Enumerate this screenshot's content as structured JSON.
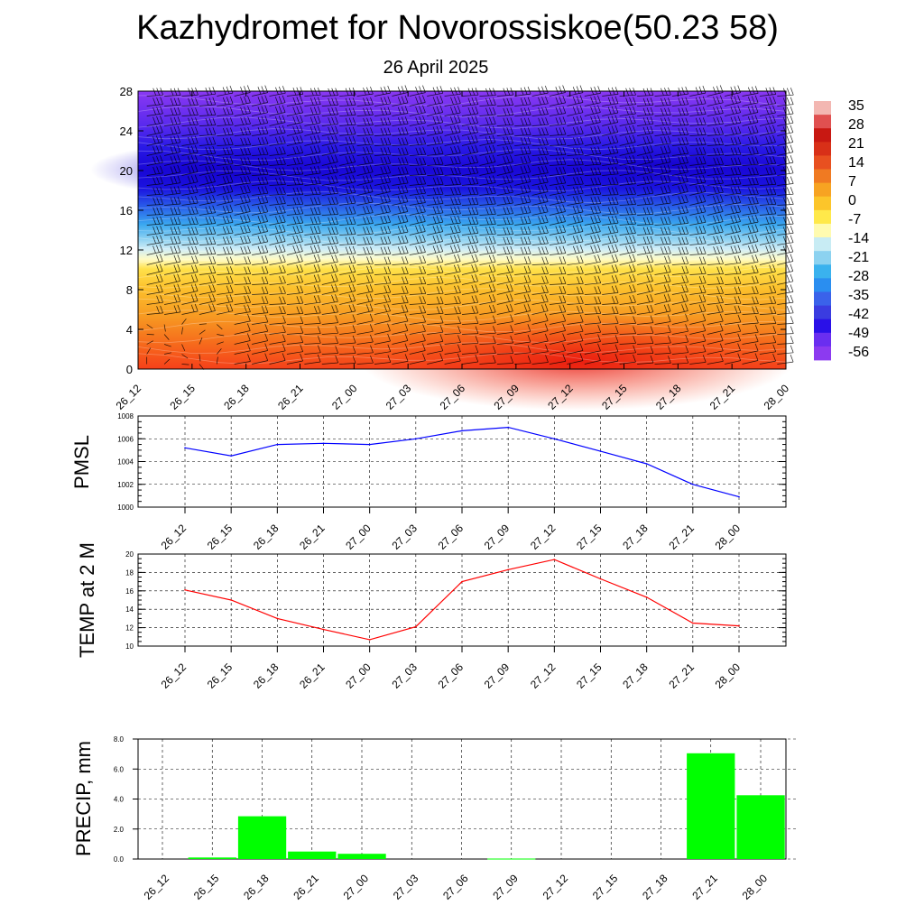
{
  "title": "Kazhydromet for Novorossiskoe(50.23 58)",
  "date": "26 April 2025",
  "chart_data": [
    {
      "type": "heatmap",
      "description_kind": "time-height temperature cross-section with wind barbs",
      "x": [
        "26_12",
        "26_15",
        "26_18",
        "26_21",
        "27_00",
        "27_03",
        "27_06",
        "27_09",
        "27_12",
        "27_15",
        "27_18",
        "27_21",
        "28_00"
      ],
      "y_ticks": [
        0,
        4,
        8,
        12,
        16,
        20,
        24,
        28
      ],
      "ylim": [
        0,
        28
      ],
      "colorbar_labels": [
        "35",
        "28",
        "21",
        "14",
        "7",
        "0",
        "-7",
        "-14",
        "-21",
        "-28",
        "-35",
        "-42",
        "-49",
        "-56"
      ],
      "colorbar_colors": [
        "#f3b7b2",
        "#e05050",
        "#c81812",
        "#d83018",
        "#e85020",
        "#f07a22",
        "#f7a322",
        "#fcc52a",
        "#ffe94a",
        "#fffbb0",
        "#c8ecf4",
        "#8cd2f0",
        "#3ab2ee",
        "#2a8ef0",
        "#3a62ea",
        "#3a3ce0",
        "#2a10e8",
        "#6a2ef0",
        "#8c3af0"
      ],
      "grid": false
    },
    {
      "type": "line",
      "ylabel": "PMSL",
      "categories": [
        "26_12",
        "26_15",
        "26_18",
        "26_21",
        "27_00",
        "27_03",
        "27_06",
        "27_09",
        "27_12",
        "27_15",
        "27_18",
        "27_21",
        "28_00"
      ],
      "values": [
        1005.2,
        1004.5,
        1005.5,
        1005.6,
        1005.5,
        1006.0,
        1006.7,
        1007.0,
        1006.0,
        1004.9,
        1003.8,
        1002.0,
        1000.9
      ],
      "ylim": [
        1000,
        1008
      ],
      "y_ticks": [
        "1000",
        "1002",
        "1004",
        "1006",
        "1008"
      ],
      "color": "#0000ff",
      "grid": true
    },
    {
      "type": "line",
      "ylabel": "TEMP at 2 M",
      "categories": [
        "26_12",
        "26_15",
        "26_18",
        "26_21",
        "27_00",
        "27_03",
        "27_06",
        "27_09",
        "27_12",
        "27_15",
        "27_18",
        "27_21",
        "28_00"
      ],
      "values": [
        16.1,
        15.0,
        13.0,
        11.8,
        10.7,
        12.1,
        17.0,
        18.3,
        19.4,
        17.3,
        15.3,
        12.5,
        12.2
      ],
      "ylim": [
        10,
        20
      ],
      "y_ticks": [
        "10",
        "12",
        "14",
        "16",
        "18",
        "20"
      ],
      "color": "#ff0000",
      "grid": true
    },
    {
      "type": "bar",
      "ylabel": "PRECIP, mm",
      "categories": [
        "26_12",
        "26_15",
        "26_18",
        "26_21",
        "27_00",
        "27_03",
        "27_06",
        "27_09",
        "27_12",
        "27_15",
        "27_18",
        "27_21",
        "28_00"
      ],
      "values": [
        0,
        0.1,
        2.85,
        0.5,
        0.35,
        0,
        0,
        0.03,
        0,
        0,
        0,
        7.05,
        4.25
      ],
      "ylim": [
        0,
        8
      ],
      "y_ticks": [
        "0.0",
        "2.0",
        "4.0",
        "6.0",
        "8.0"
      ],
      "color": "#00ff00",
      "grid": true
    }
  ]
}
